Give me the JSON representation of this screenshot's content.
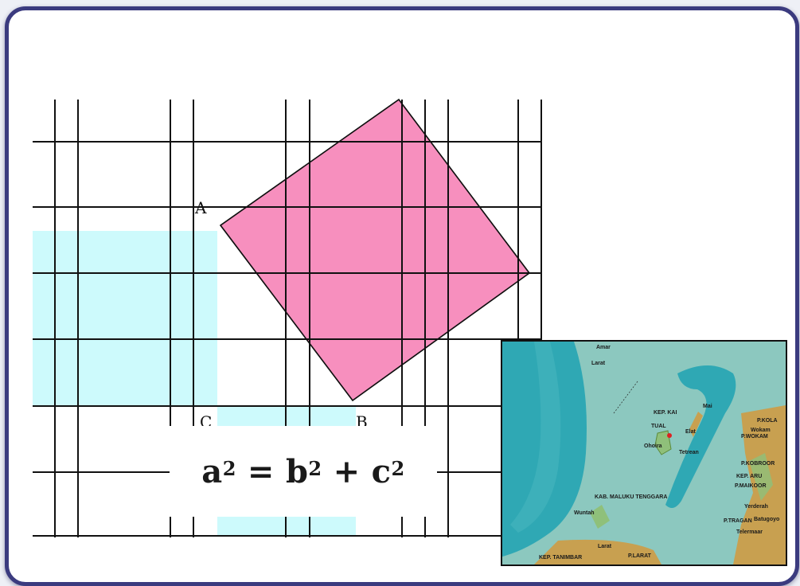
{
  "diagram": {
    "points": {
      "a": "A",
      "b": "B",
      "c": "C"
    },
    "formula": {
      "a": "a",
      "b": "b",
      "c": "c",
      "exp": "2",
      "eq": "=",
      "plus": "+"
    },
    "colors": {
      "grid": "#111111",
      "square_hyp": "#f78fbe",
      "square_legs": "#cdfafc",
      "frame": "#3b3b7f"
    }
  },
  "map_inset": {
    "colors": {
      "sea_deep": "#2fa8b4",
      "sea_shallow": "#7fc4c0",
      "land": "#c8a050",
      "land_green": "#8fc07a"
    },
    "labels": {
      "amar": "Amar",
      "larat_top": "Larat",
      "kep_kai": "KEP. KAI",
      "mai": "Mai",
      "tual": "TUAL",
      "elat": "Elat",
      "ohoira": "Ohoira",
      "tetrean": "Tetrean",
      "p_kola": "P.KOLA",
      "wokam": "Wokam",
      "p_wokam": "P.WOKAM",
      "p_kobroor": "P.KOBROOR",
      "kep_aru": "KEP. ARU",
      "p_maikoor": "P.MAIKOOR",
      "kab": "KAB. MALUKU TENGGARA",
      "wunlah": "Wuntah",
      "yerderah": "Yerderah",
      "p_tragan": "P.TRAGAN",
      "batugoyo": "Batugoyo",
      "telermaar": "Telermaar",
      "kep_tanimbar": "KEP. TANIMBAR",
      "larat_bottom": "Larat",
      "p_larat": "P.LARAT"
    }
  }
}
